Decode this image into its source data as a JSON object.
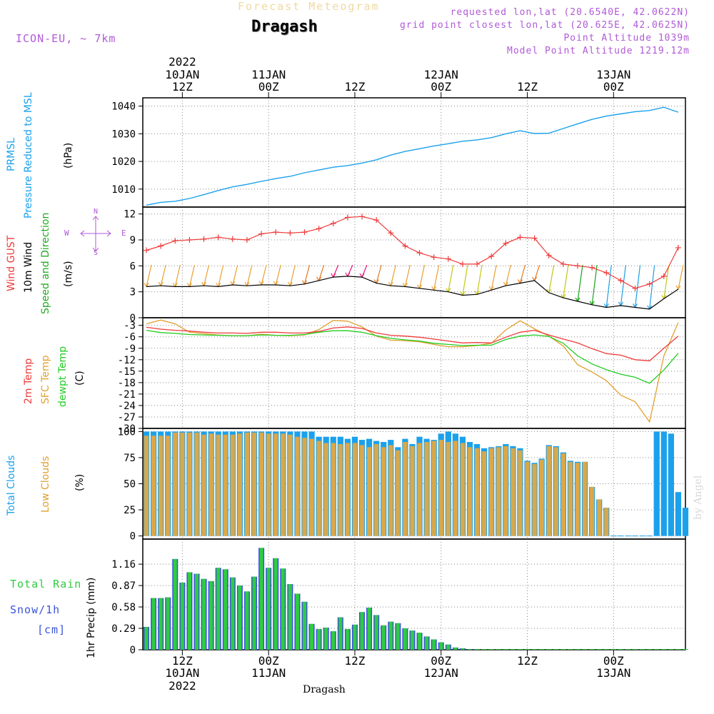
{
  "header": {
    "subtitle": "Forecast Meteogram",
    "title": "Dragash",
    "model": "ICON-EU, ~ 7km",
    "requested": "requested lon,lat (20.6540E, 42.0622N)",
    "grid_point": "grid point closest lon,lat (20.625E, 42.0625N)",
    "point_altitude": "Point Altitude 1039m",
    "model_altitude": "Model Point Altitude 1219.12m",
    "credit": "by Angel",
    "footer": "Dragash"
  },
  "time_axis": {
    "top_labels": [
      {
        "line1": "2022",
        "line2": "10JAN",
        "line3": "12Z",
        "hour": 12
      },
      {
        "line1": "",
        "line2": "11JAN",
        "line3": "00Z",
        "hour": 24
      },
      {
        "line1": "",
        "line2": "",
        "line3": "12Z",
        "hour": 36
      },
      {
        "line1": "",
        "line2": "12JAN",
        "line3": "00Z",
        "hour": 48
      },
      {
        "line1": "",
        "line2": "",
        "line3": "12Z",
        "hour": 60
      },
      {
        "line1": "",
        "line2": "13JAN",
        "line3": "00Z",
        "hour": 72
      }
    ],
    "bottom_labels": [
      {
        "line1": "12Z",
        "line2": "10JAN",
        "line3": "2022",
        "hour": 12
      },
      {
        "line1": "00Z",
        "line2": "11JAN",
        "line3": "",
        "hour": 24
      },
      {
        "line1": "12Z",
        "line2": "",
        "line3": "",
        "hour": 36
      },
      {
        "line1": "00Z",
        "line2": "12JAN",
        "line3": "",
        "hour": 48
      },
      {
        "line1": "12Z",
        "line2": "",
        "line3": "",
        "hour": 60
      },
      {
        "line1": "00Z",
        "line2": "13JAN",
        "line3": "",
        "hour": 72
      }
    ],
    "hour_range": [
      6.5,
      82
    ]
  },
  "panels": {
    "pressure": {
      "label_lines": [
        "PRMSL",
        "Pressure Reduced to MSL"
      ],
      "unit": "(hPa)",
      "color": "#1ba1ec"
    },
    "wind": {
      "gust_label": "Wind GUST",
      "wind_label": "10m Wind",
      "dir_label": "Speed and Direction",
      "unit": "(m/s)",
      "compass": [
        "N",
        "E",
        "S",
        "W"
      ],
      "gust_color": "#ef3b3b",
      "wind_color": "#000000"
    },
    "temperature": {
      "t2m_label": "2m Temp",
      "sfc_label": "SFC Temp",
      "dewpt_label": "dewpt Temp",
      "unit": "(C)",
      "t2m_color": "#ef3b3b",
      "sfc_color": "#e0a030",
      "dewpt_color": "#22cc22"
    },
    "clouds": {
      "total_label": "Total Clouds",
      "low_label": "Low Clouds",
      "unit": "(%)",
      "total_color": "#1ba1ec",
      "low_color": "#d9a84a"
    },
    "precip": {
      "total_label": "Total Rain",
      "snow_label": "Snow/1h",
      "snow_unit": "[cm]",
      "axis_label": "1hr Precip (mm)",
      "rain_color": "#2ecc40",
      "snow_color": "#3b54d9"
    }
  },
  "chart_data": [
    {
      "type": "line",
      "title": "PRMSL Pressure Reduced to MSL",
      "ylabel": "(hPa)",
      "ylim": [
        1003.5,
        1043
      ],
      "yticks": [
        1010,
        1020,
        1030,
        1040
      ],
      "grid": true,
      "x": [
        7,
        9,
        11,
        13,
        15,
        17,
        19,
        21,
        23,
        25,
        27,
        29,
        31,
        33,
        35,
        37,
        39,
        41,
        43,
        45,
        47,
        49,
        51,
        53,
        55,
        57,
        59,
        61,
        63,
        65,
        67,
        69,
        71,
        73,
        75,
        77,
        79,
        81
      ],
      "series": [
        {
          "name": "PRMSL",
          "values": [
            1004.2,
            1005.2,
            1005.6,
            1006.6,
            1008.0,
            1009.5,
            1010.8,
            1011.7,
            1012.8,
            1013.8,
            1014.6,
            1015.9,
            1016.9,
            1017.9,
            1018.5,
            1019.4,
            1020.6,
            1022.3,
            1023.6,
            1024.6,
            1025.6,
            1026.4,
            1027.3,
            1027.8,
            1028.6,
            1030.0,
            1031.1,
            1030.1,
            1030.2,
            1031.9,
            1033.6,
            1035.2,
            1036.4,
            1037.2,
            1038.0,
            1038.4,
            1039.6,
            1037.8
          ]
        }
      ]
    },
    {
      "type": "line",
      "title": "Wind GUST / 10m Wind Speed and Direction",
      "ylabel": "(m/s)",
      "ylim": [
        0,
        12.8
      ],
      "yticks": [
        0,
        3,
        6,
        9,
        12
      ],
      "grid": true,
      "x": [
        7,
        9,
        11,
        13,
        15,
        17,
        19,
        21,
        23,
        25,
        27,
        29,
        31,
        33,
        35,
        37,
        39,
        41,
        43,
        45,
        47,
        49,
        51,
        53,
        55,
        57,
        59,
        61,
        63,
        65,
        67,
        69,
        71,
        73,
        75,
        77,
        79,
        81
      ],
      "series": [
        {
          "name": "Wind GUST",
          "values": [
            7.8,
            8.3,
            8.9,
            9.0,
            9.1,
            9.3,
            9.1,
            9.0,
            9.7,
            9.9,
            9.8,
            9.9,
            10.3,
            10.9,
            11.6,
            11.7,
            11.3,
            9.8,
            8.3,
            7.5,
            7.0,
            6.8,
            6.2,
            6.2,
            7.1,
            8.6,
            9.3,
            9.2,
            7.2,
            6.2,
            6.0,
            5.8,
            5.2,
            4.3,
            3.4,
            3.9,
            4.8,
            8.1
          ]
        },
        {
          "name": "10m Wind",
          "values": [
            3.6,
            3.7,
            3.6,
            3.6,
            3.7,
            3.6,
            3.8,
            3.7,
            3.8,
            3.8,
            3.7,
            3.9,
            4.3,
            4.7,
            4.8,
            4.7,
            4.0,
            3.7,
            3.6,
            3.4,
            3.2,
            3.0,
            2.6,
            2.7,
            3.2,
            3.7,
            4.0,
            4.3,
            2.9,
            2.3,
            1.9,
            1.5,
            1.2,
            1.4,
            1.2,
            1.0,
            2.2,
            3.3
          ]
        }
      ]
    },
    {
      "type": "line",
      "title": "2m Temp / SFC Temp / dewpt Temp",
      "ylabel": "(C)",
      "ylim": [
        -30,
        -1
      ],
      "yticks": [
        -3,
        -6,
        -9,
        -12,
        -15,
        -18,
        -21,
        -24,
        -27,
        -30
      ],
      "grid": true,
      "x": [
        7,
        9,
        11,
        13,
        15,
        17,
        19,
        21,
        23,
        25,
        27,
        29,
        31,
        33,
        35,
        37,
        39,
        41,
        43,
        45,
        47,
        49,
        51,
        53,
        55,
        57,
        59,
        61,
        63,
        65,
        67,
        69,
        71,
        73,
        75,
        77,
        79,
        81
      ],
      "series": [
        {
          "name": "2m Temp",
          "values": [
            -3.5,
            -4.0,
            -4.3,
            -4.5,
            -4.8,
            -5.0,
            -5.0,
            -5.1,
            -4.8,
            -4.8,
            -5.0,
            -5.0,
            -4.6,
            -3.7,
            -3.4,
            -3.8,
            -5.0,
            -5.6,
            -5.8,
            -6.1,
            -6.6,
            -7.1,
            -7.6,
            -7.5,
            -7.6,
            -6.1,
            -4.8,
            -4.3,
            -5.5,
            -6.6,
            -7.6,
            -9.1,
            -10.4,
            -10.8,
            -12.0,
            -12.3,
            -9.0,
            -5.8
          ]
        },
        {
          "name": "SFC Temp",
          "values": [
            -2.6,
            -1.6,
            -2.6,
            -4.8,
            -5.2,
            -5.5,
            -5.7,
            -5.7,
            -5.3,
            -5.6,
            -5.7,
            -5.5,
            -4.1,
            -1.7,
            -1.9,
            -3.4,
            -5.8,
            -6.9,
            -7.0,
            -7.3,
            -8.0,
            -8.6,
            -8.6,
            -8.3,
            -7.7,
            -4.2,
            -1.8,
            -3.9,
            -5.8,
            -8.4,
            -13.3,
            -15.2,
            -17.5,
            -21.3,
            -23.0,
            -28.3,
            -11.0,
            -2.3
          ]
        },
        {
          "name": "dewpt Temp",
          "values": [
            -4.3,
            -4.9,
            -5.1,
            -5.4,
            -5.5,
            -5.6,
            -5.7,
            -5.7,
            -5.5,
            -5.6,
            -5.6,
            -5.4,
            -4.8,
            -4.4,
            -4.4,
            -4.8,
            -5.7,
            -6.4,
            -6.8,
            -7.1,
            -7.7,
            -8.0,
            -8.3,
            -8.2,
            -8.2,
            -6.7,
            -5.8,
            -5.5,
            -5.9,
            -7.7,
            -11.0,
            -13.1,
            -14.6,
            -15.8,
            -16.6,
            -18.2,
            -14.7,
            -10.3
          ]
        }
      ]
    },
    {
      "type": "bar",
      "title": "Total Clouds / Low Clouds",
      "ylabel": "(%)",
      "ylim": [
        -3,
        103
      ],
      "yticks": [
        0,
        25,
        50,
        75,
        100
      ],
      "grid": true,
      "x": [
        7,
        8,
        9,
        10,
        11,
        12,
        13,
        14,
        15,
        16,
        17,
        18,
        19,
        20,
        21,
        22,
        23,
        24,
        25,
        26,
        27,
        28,
        29,
        30,
        31,
        32,
        33,
        34,
        35,
        36,
        37,
        38,
        39,
        40,
        41,
        42,
        43,
        44,
        45,
        46,
        47,
        48,
        49,
        50,
        51,
        52,
        53,
        54,
        55,
        56,
        57,
        58,
        59,
        60,
        61,
        62,
        63,
        64,
        65,
        66,
        67,
        68,
        69,
        70,
        71,
        72,
        73,
        74,
        75,
        76,
        77,
        78,
        79,
        80,
        81,
        82
      ],
      "series": [
        {
          "name": "Total Clouds",
          "values": [
            100,
            100,
            100,
            100,
            100,
            100,
            100,
            100,
            100,
            100,
            100,
            100,
            100,
            100,
            100,
            100,
            100,
            100,
            100,
            100,
            100,
            100,
            100,
            100,
            95,
            95,
            95,
            95,
            93,
            95,
            92,
            93,
            91,
            90,
            92,
            85,
            93,
            88,
            95,
            93,
            92,
            98,
            100,
            98,
            95,
            90,
            88,
            84,
            85,
            86,
            88,
            86,
            84,
            72,
            70,
            74,
            87,
            86,
            80,
            72,
            71,
            71,
            47,
            35,
            27,
            0,
            0,
            0,
            0,
            0,
            0,
            100,
            100,
            98,
            42,
            27
          ]
        },
        {
          "name": "Low Clouds",
          "values": [
            96,
            96,
            96,
            96,
            99,
            99,
            99,
            99,
            97,
            98,
            97,
            97,
            97,
            98,
            99,
            99,
            99,
            98,
            98,
            98,
            97,
            95,
            94,
            93,
            91,
            89,
            89,
            88,
            89,
            89,
            87,
            85,
            88,
            85,
            87,
            82,
            90,
            86,
            89,
            90,
            91,
            92,
            90,
            91,
            89,
            85,
            84,
            81,
            84,
            85,
            86,
            84,
            82,
            71,
            69,
            73,
            86,
            85,
            79,
            71,
            70,
            71,
            47,
            35,
            27,
            0,
            0,
            0,
            0,
            0,
            0,
            0,
            0,
            0,
            0,
            0
          ]
        }
      ]
    },
    {
      "type": "bar",
      "title": "Total Rain / Snow/1h",
      "ylabel": "1hr Precip (mm)",
      "ylim": [
        0,
        1.5
      ],
      "yticks": [
        0,
        0.29,
        0.58,
        0.87,
        1.16
      ],
      "grid": true,
      "x": [
        7,
        8,
        9,
        10,
        11,
        12,
        13,
        14,
        15,
        16,
        17,
        18,
        19,
        20,
        21,
        22,
        23,
        24,
        25,
        26,
        27,
        28,
        29,
        30,
        31,
        32,
        33,
        34,
        35,
        36,
        37,
        38,
        39,
        40,
        41,
        42,
        43,
        44,
        45,
        46,
        47,
        48,
        49,
        50,
        51,
        52,
        53,
        54,
        55,
        56,
        57,
        58,
        59,
        60,
        61,
        62,
        63,
        64,
        65,
        66,
        67,
        68,
        69,
        70,
        71,
        72,
        73,
        74,
        75,
        76,
        77,
        78,
        79,
        80,
        81,
        82
      ],
      "series": [
        {
          "name": "Total Rain",
          "values": [
            0.31,
            0.7,
            0.7,
            0.71,
            1.23,
            0.91,
            1.05,
            1.03,
            0.96,
            0.93,
            1.11,
            1.09,
            0.98,
            0.87,
            0.79,
            0.99,
            1.38,
            1.11,
            1.24,
            1.1,
            0.89,
            0.76,
            0.65,
            0.35,
            0.28,
            0.3,
            0.25,
            0.44,
            0.28,
            0.34,
            0.51,
            0.57,
            0.47,
            0.33,
            0.38,
            0.36,
            0.29,
            0.26,
            0.23,
            0.18,
            0.14,
            0.1,
            0.07,
            0.03,
            0.02,
            0.01,
            0,
            0,
            0,
            0,
            0,
            0,
            0,
            0,
            0,
            0,
            0,
            0,
            0,
            0,
            0,
            0,
            0,
            0,
            0,
            0,
            0,
            0,
            0,
            0,
            0,
            0,
            0,
            0,
            0,
            0
          ]
        }
      ]
    }
  ]
}
